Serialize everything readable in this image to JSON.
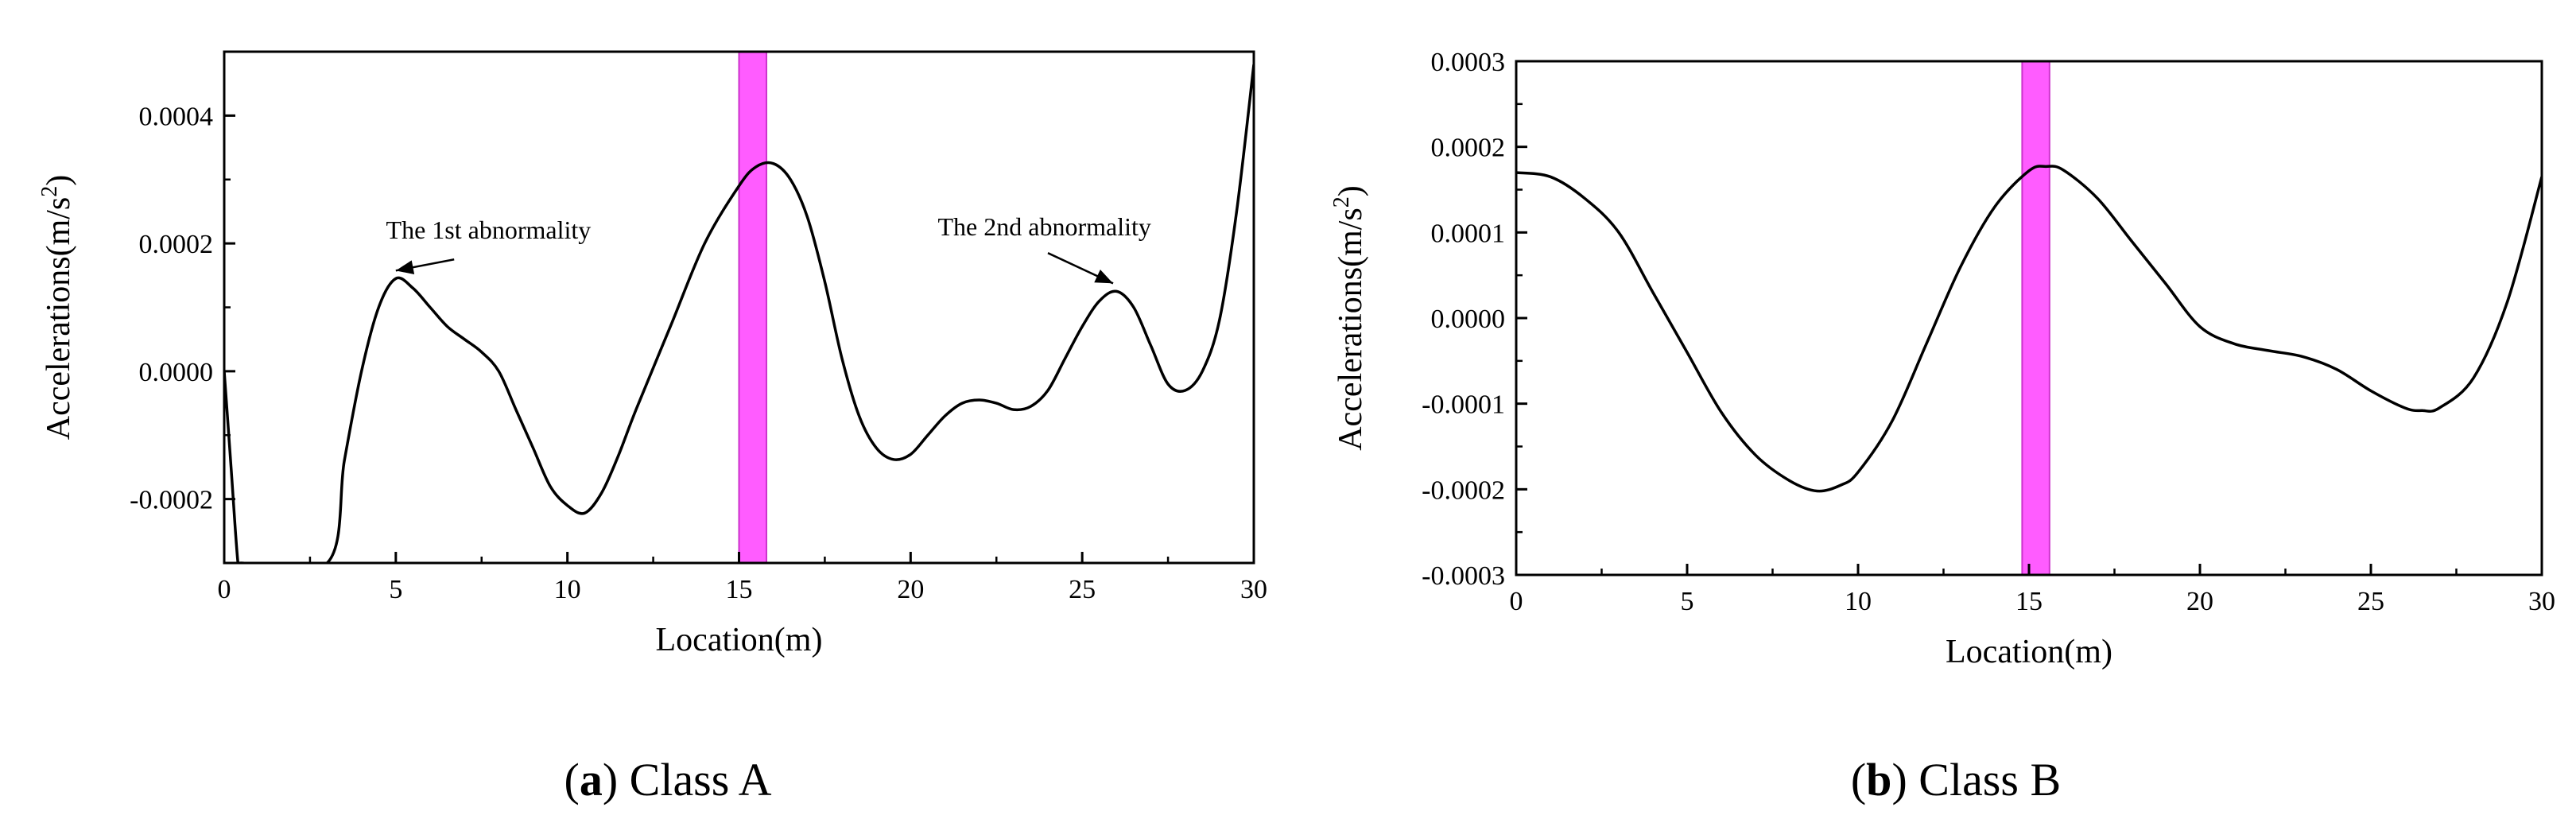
{
  "chart_data": [
    {
      "type": "line",
      "panel": "a",
      "caption_letter": "a",
      "caption_text": "Class A",
      "xlabel": "Location(m)",
      "ylabel_base": "Accelerations(m/s",
      "ylabel_sup": "2",
      "ylabel_close": ")",
      "xlim": [
        0,
        30
      ],
      "ylim": [
        -0.0003,
        0.0005
      ],
      "xticks": [
        0,
        5,
        10,
        15,
        20,
        25,
        30
      ],
      "xtick_labels": [
        "0",
        "5",
        "10",
        "15",
        "20",
        "25",
        "30"
      ],
      "yticks": [
        -0.0002,
        0.0,
        0.0002,
        0.0004
      ],
      "ytick_labels": [
        "-0.0002",
        "0.0000",
        "0.0002",
        "0.0004"
      ],
      "highlight_band": {
        "x0": 15.0,
        "x1": 15.8,
        "color": "#ff5cff"
      },
      "series": [
        {
          "x": [
            0,
            0.2,
            0.4,
            0.5,
            3.0,
            3.5,
            4.0,
            4.5,
            5.0,
            5.5,
            6.0,
            6.5,
            7.0,
            7.5,
            8.0,
            8.5,
            9.0,
            9.5,
            10.0,
            10.5,
            11.0,
            11.5,
            12.0,
            13.0,
            14.0,
            15.0,
            15.5,
            16.0,
            16.5,
            17.0,
            17.5,
            18.0,
            18.5,
            19.0,
            19.5,
            20.0,
            20.5,
            21.0,
            21.5,
            22.0,
            22.5,
            23.0,
            23.5,
            24.0,
            24.5,
            25.0,
            25.5,
            26.0,
            26.5,
            27.0,
            27.5,
            28.0,
            28.5,
            29.0,
            29.5,
            30.0
          ],
          "y": [
            0.0,
            -0.00015,
            -0.0003,
            -0.0003,
            -0.0003,
            -0.00014,
            0.0,
            0.0001,
            0.000145,
            0.00013,
            0.0001,
            7e-05,
            5e-05,
            3e-05,
            0.0,
            -6e-05,
            -0.00012,
            -0.00018,
            -0.00021,
            -0.000222,
            -0.00019,
            -0.00013,
            -6e-05,
            7e-05,
            0.0002,
            0.00029,
            0.00032,
            0.000325,
            0.0003,
            0.00024,
            0.00014,
            2e-05,
            -7e-05,
            -0.00012,
            -0.000138,
            -0.00013,
            -0.0001,
            -7e-05,
            -5e-05,
            -4.5e-05,
            -5e-05,
            -6e-05,
            -5.5e-05,
            -3e-05,
            2e-05,
            7e-05,
            0.00011,
            0.000125,
            0.0001,
            4e-05,
            -2e-05,
            -3e-05,
            0.0,
            8e-05,
            0.00025,
            0.00048
          ]
        }
      ],
      "annotations": [
        {
          "text": "The 1st abnormality",
          "x": 5.0,
          "y": 0.000145
        },
        {
          "text": "The 2nd abnormality",
          "x": 25.9,
          "y": 0.000125
        }
      ]
    },
    {
      "type": "line",
      "panel": "b",
      "caption_letter": "b",
      "caption_text": "Class B",
      "xlabel": "Location(m)",
      "ylabel_base": "Accelerations(m/s",
      "ylabel_sup": "2",
      "ylabel_close": ")",
      "xlim": [
        0,
        30
      ],
      "ylim": [
        -0.0003,
        0.0003
      ],
      "xticks": [
        0,
        5,
        10,
        15,
        20,
        25,
        30
      ],
      "xtick_labels": [
        "0",
        "5",
        "10",
        "15",
        "20",
        "25",
        "30"
      ],
      "yticks": [
        -0.0003,
        -0.0002,
        -0.0001,
        0.0,
        0.0001,
        0.0002,
        0.0003
      ],
      "ytick_labels": [
        "-0.0003",
        "-0.0002",
        "-0.0001",
        "0.0000",
        "0.0001",
        "0.0002",
        "0.0003"
      ],
      "highlight_band": {
        "x0": 14.8,
        "x1": 15.6,
        "color": "#ff5cff"
      },
      "series": [
        {
          "x": [
            0,
            1,
            2,
            3,
            4,
            5,
            6,
            7,
            8,
            8.8,
            9.5,
            10,
            11,
            12,
            13,
            14,
            15,
            15.5,
            16,
            17,
            18,
            19,
            20,
            21,
            22,
            23,
            24,
            25,
            26,
            26.5,
            27,
            28,
            29,
            30
          ],
          "y": [
            0.00017,
            0.000165,
            0.00014,
            0.0001,
            3e-05,
            -4e-05,
            -0.00011,
            -0.00016,
            -0.00019,
            -0.000202,
            -0.000195,
            -0.00018,
            -0.00012,
            -3e-05,
            6e-05,
            0.00013,
            0.000172,
            0.000177,
            0.000173,
            0.00014,
            9e-05,
            4e-05,
            -1e-05,
            -3e-05,
            -3.8e-05,
            -4.5e-05,
            -6e-05,
            -8.5e-05,
            -0.000105,
            -0.000108,
            -0.000105,
            -7e-05,
            2e-05,
            0.000165
          ]
        }
      ],
      "annotations": []
    }
  ]
}
